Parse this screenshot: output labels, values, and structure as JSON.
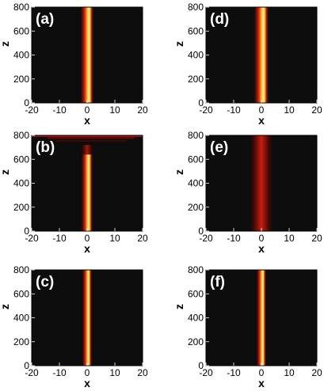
{
  "chart_data": [
    {
      "type": "heatmap",
      "panel_label": "(a)",
      "xlabel": "x",
      "ylabel": "z",
      "xlim": [
        -20,
        20
      ],
      "ylim": [
        0,
        800
      ],
      "xticks": [
        "-20",
        "-10",
        "0",
        "10",
        "20"
      ],
      "yticks": [
        "0",
        "200",
        "400",
        "600",
        "800"
      ],
      "beam_center_x": 0,
      "beam_width": 1.6,
      "variant": "stable"
    },
    {
      "type": "heatmap",
      "panel_label": "(b)",
      "xlabel": "x",
      "ylabel": "z",
      "xlim": [
        -20,
        20
      ],
      "ylim": [
        0,
        800
      ],
      "xticks": [
        "-20",
        "-10",
        "0",
        "10",
        "20"
      ],
      "yticks": [
        "0",
        "200",
        "400",
        "600",
        "800"
      ],
      "beam_center_x": 0,
      "beam_width": 1.4,
      "variant": "breakup-top"
    },
    {
      "type": "heatmap",
      "panel_label": "(c)",
      "xlabel": "x",
      "ylabel": "z",
      "xlim": [
        -20,
        20
      ],
      "ylim": [
        0,
        800
      ],
      "xticks": [
        "-20",
        "-10",
        "0",
        "10",
        "20"
      ],
      "yticks": [
        "0",
        "200",
        "400",
        "600",
        "800"
      ],
      "beam_center_x": 0,
      "beam_width": 1.2,
      "variant": "stable"
    },
    {
      "type": "heatmap",
      "panel_label": "(d)",
      "xlabel": "x",
      "ylabel": "z",
      "xlim": [
        -20,
        20
      ],
      "ylim": [
        0,
        800
      ],
      "xticks": [
        "-20",
        "-10",
        "0",
        "10",
        "20"
      ],
      "yticks": [
        "0",
        "200",
        "400",
        "600",
        "800"
      ],
      "beam_center_x": 0,
      "beam_width": 1.8,
      "variant": "stable"
    },
    {
      "type": "heatmap",
      "panel_label": "(e)",
      "xlabel": "x",
      "ylabel": "z",
      "xlim": [
        -20,
        20
      ],
      "ylim": [
        0,
        800
      ],
      "xticks": [
        "-20",
        "-10",
        "0",
        "10",
        "20"
      ],
      "yticks": [
        "0",
        "200",
        "400",
        "600",
        "800"
      ],
      "beam_center_x": 0,
      "beam_width": 2.6,
      "variant": "diffuse"
    },
    {
      "type": "heatmap",
      "panel_label": "(f)",
      "xlabel": "x",
      "ylabel": "z",
      "xlim": [
        -20,
        20
      ],
      "ylim": [
        0,
        800
      ],
      "xticks": [
        "-20",
        "-10",
        "0",
        "10",
        "20"
      ],
      "yticks": [
        "0",
        "200",
        "400",
        "600",
        "800"
      ],
      "beam_center_x": 0,
      "beam_width": 1.2,
      "variant": "stable"
    }
  ],
  "colors": {
    "background": "#0d0d0d",
    "beam_core": "#fff3b0",
    "beam_mid": "#ffb020",
    "beam_edge": "#c01010",
    "axis": "#000000"
  }
}
